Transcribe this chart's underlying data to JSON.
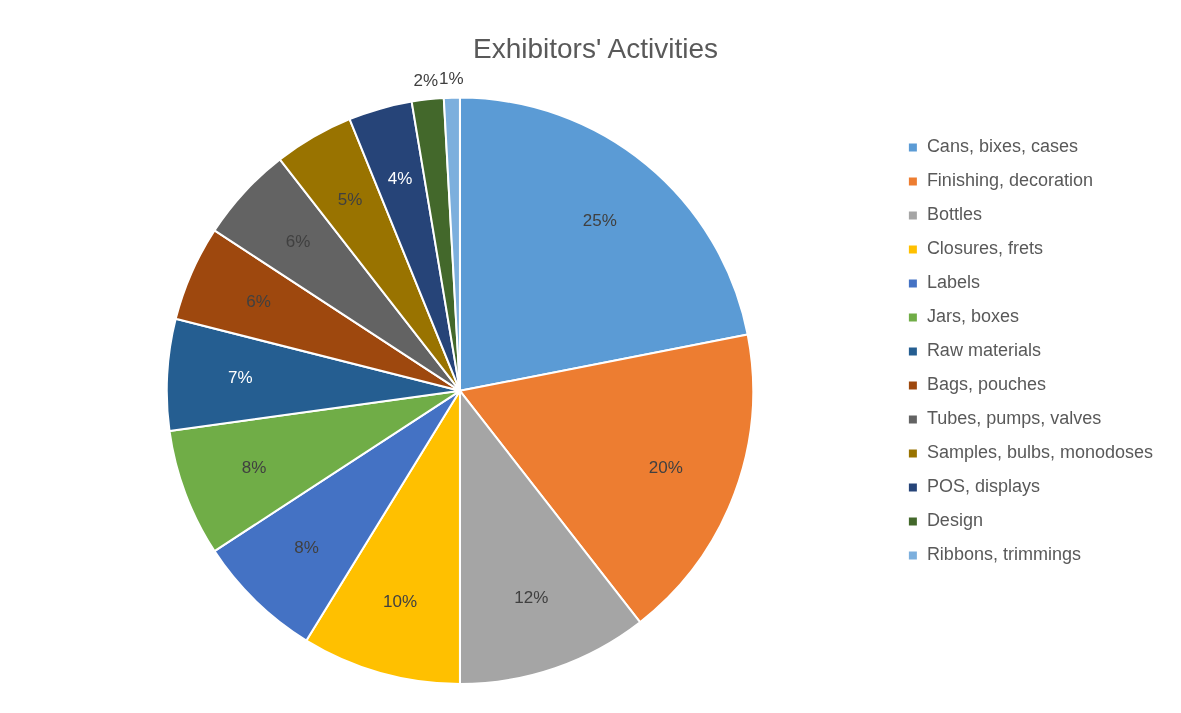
{
  "chart_data": {
    "type": "pie",
    "title": "Exhibitors' Activities",
    "categories": [
      "Cans, bixes, cases",
      "Finishing, decoration",
      "Bottles",
      "Closures, frets",
      "Labels",
      "Jars, boxes",
      "Raw materials",
      "Bags, pouches",
      "Tubes, pumps, valves",
      "Samples, bulbs, monodoses",
      "POS, displays",
      "Design",
      "Ribbons, trimmings"
    ],
    "values": [
      25,
      20,
      12,
      10,
      8,
      8,
      7,
      6,
      6,
      5,
      4,
      2,
      1
    ],
    "value_labels": [
      "25%",
      "20%",
      "12%",
      "10%",
      "8%",
      "8%",
      "7%",
      "6%",
      "6%",
      "5%",
      "4%",
      "2%",
      "1%"
    ],
    "colors": [
      "#5b9bd5",
      "#ed7d31",
      "#a5a5a5",
      "#ffc000",
      "#4472c4",
      "#70ad47",
      "#255e91",
      "#9e480e",
      "#636363",
      "#997300",
      "#264478",
      "#43682b",
      "#7cafdd"
    ],
    "legend": "right"
  }
}
